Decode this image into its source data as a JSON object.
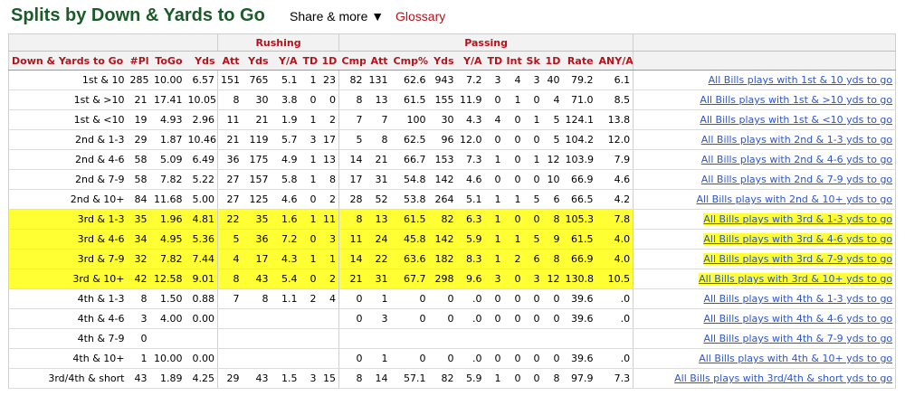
{
  "header": {
    "title": "Splits by Down & Yards to Go",
    "share_label": "Share & more ▼",
    "glossary_label": "Glossary"
  },
  "table": {
    "groups": [
      "Rushing",
      "Passing"
    ],
    "columns": [
      "Down & Yards to Go",
      "#Pl",
      "ToGo",
      "Yds",
      "Att",
      "Yds",
      "Y/A",
      "TD",
      "1D",
      "Cmp",
      "Att",
      "Cmp%",
      "Yds",
      "Y/A",
      "TD",
      "Int",
      "Sk",
      "1D",
      "Rate",
      "ANY/A"
    ],
    "highlight_color": "#ffff33",
    "rows": [
      {
        "cells": [
          "1st & 10",
          "285",
          "10.00",
          "6.57",
          "151",
          "765",
          "5.1",
          "1",
          "23",
          "82",
          "131",
          "62.6",
          "943",
          "7.2",
          "3",
          "4",
          "3",
          "40",
          "79.2",
          "6.1"
        ],
        "link": "All Bills plays with 1st & 10 yds to go",
        "highlight": false
      },
      {
        "cells": [
          "1st & >10",
          "21",
          "17.41",
          "10.05",
          "8",
          "30",
          "3.8",
          "0",
          "0",
          "8",
          "13",
          "61.5",
          "155",
          "11.9",
          "0",
          "1",
          "0",
          "4",
          "71.0",
          "8.5"
        ],
        "link": "All Bills plays with 1st & >10 yds to go",
        "highlight": false
      },
      {
        "cells": [
          "1st & <10",
          "19",
          "4.93",
          "2.96",
          "11",
          "21",
          "1.9",
          "1",
          "2",
          "7",
          "7",
          "100",
          "30",
          "4.3",
          "4",
          "0",
          "1",
          "5",
          "124.1",
          "13.8"
        ],
        "link": "All Bills plays with 1st & <10 yds to go",
        "highlight": false
      },
      {
        "cells": [
          "2nd & 1-3",
          "29",
          "1.87",
          "10.46",
          "21",
          "119",
          "5.7",
          "3",
          "17",
          "5",
          "8",
          "62.5",
          "96",
          "12.0",
          "0",
          "0",
          "0",
          "5",
          "104.2",
          "12.0"
        ],
        "link": "All Bills plays with 2nd & 1-3 yds to go",
        "highlight": false
      },
      {
        "cells": [
          "2nd & 4-6",
          "58",
          "5.09",
          "6.49",
          "36",
          "175",
          "4.9",
          "1",
          "13",
          "14",
          "21",
          "66.7",
          "153",
          "7.3",
          "1",
          "0",
          "1",
          "12",
          "103.9",
          "7.9"
        ],
        "link": "All Bills plays with 2nd & 4-6 yds to go",
        "highlight": false
      },
      {
        "cells": [
          "2nd & 7-9",
          "58",
          "7.82",
          "5.22",
          "27",
          "157",
          "5.8",
          "1",
          "8",
          "17",
          "31",
          "54.8",
          "142",
          "4.6",
          "0",
          "0",
          "0",
          "10",
          "66.9",
          "4.6"
        ],
        "link": "All Bills plays with 2nd & 7-9 yds to go",
        "highlight": false
      },
      {
        "cells": [
          "2nd & 10+",
          "84",
          "11.68",
          "5.00",
          "27",
          "125",
          "4.6",
          "0",
          "2",
          "28",
          "52",
          "53.8",
          "264",
          "5.1",
          "1",
          "1",
          "5",
          "6",
          "66.5",
          "4.2"
        ],
        "link": "All Bills plays with 2nd & 10+ yds to go",
        "highlight": false
      },
      {
        "cells": [
          "3rd & 1-3",
          "35",
          "1.96",
          "4.81",
          "22",
          "35",
          "1.6",
          "1",
          "11",
          "8",
          "13",
          "61.5",
          "82",
          "6.3",
          "1",
          "0",
          "0",
          "8",
          "105.3",
          "7.8"
        ],
        "link": "All Bills plays with 3rd & 1-3 yds to go",
        "highlight": true
      },
      {
        "cells": [
          "3rd & 4-6",
          "34",
          "4.95",
          "5.36",
          "5",
          "36",
          "7.2",
          "0",
          "3",
          "11",
          "24",
          "45.8",
          "142",
          "5.9",
          "1",
          "1",
          "5",
          "9",
          "61.5",
          "4.0"
        ],
        "link": "All Bills plays with 3rd & 4-6 yds to go",
        "highlight": true
      },
      {
        "cells": [
          "3rd & 7-9",
          "32",
          "7.82",
          "7.44",
          "4",
          "17",
          "4.3",
          "1",
          "1",
          "14",
          "22",
          "63.6",
          "182",
          "8.3",
          "1",
          "2",
          "6",
          "8",
          "66.9",
          "4.0"
        ],
        "link": "All Bills plays with 3rd & 7-9 yds to go",
        "highlight": true
      },
      {
        "cells": [
          "3rd & 10+",
          "42",
          "12.58",
          "9.01",
          "8",
          "43",
          "5.4",
          "0",
          "2",
          "21",
          "31",
          "67.7",
          "298",
          "9.6",
          "3",
          "0",
          "3",
          "12",
          "130.8",
          "10.5"
        ],
        "link": "All Bills plays with 3rd & 10+ yds to go",
        "highlight": true
      },
      {
        "cells": [
          "4th & 1-3",
          "8",
          "1.50",
          "0.88",
          "7",
          "8",
          "1.1",
          "2",
          "4",
          "0",
          "1",
          "0",
          "0",
          ".0",
          "0",
          "0",
          "0",
          "0",
          "39.6",
          ".0"
        ],
        "link": "All Bills plays with 4th & 1-3 yds to go",
        "highlight": false
      },
      {
        "cells": [
          "4th & 4-6",
          "3",
          "4.00",
          "0.00",
          "",
          "",
          "",
          "",
          "",
          "0",
          "3",
          "0",
          "0",
          ".0",
          "0",
          "0",
          "0",
          "0",
          "39.6",
          ".0"
        ],
        "link": "All Bills plays with 4th & 4-6 yds to go",
        "highlight": false
      },
      {
        "cells": [
          "4th & 7-9",
          "0",
          "",
          "",
          "",
          "",
          "",
          "",
          "",
          "",
          "",
          "",
          "",
          "",
          "",
          "",
          "",
          "",
          "",
          ""
        ],
        "link": "All Bills plays with 4th & 7-9 yds to go",
        "highlight": false
      },
      {
        "cells": [
          "4th & 10+",
          "1",
          "10.00",
          "0.00",
          "",
          "",
          "",
          "",
          "",
          "0",
          "1",
          "0",
          "0",
          ".0",
          "0",
          "0",
          "0",
          "0",
          "39.6",
          ".0"
        ],
        "link": "All Bills plays with 4th & 10+ yds to go",
        "highlight": false
      },
      {
        "cells": [
          "3rd/4th & short",
          "43",
          "1.89",
          "4.25",
          "29",
          "43",
          "1.5",
          "3",
          "15",
          "8",
          "14",
          "57.1",
          "82",
          "5.9",
          "1",
          "0",
          "0",
          "8",
          "97.9",
          "7.3"
        ],
        "link": "All Bills plays with 3rd/4th & short yds to go",
        "highlight": false
      }
    ]
  }
}
